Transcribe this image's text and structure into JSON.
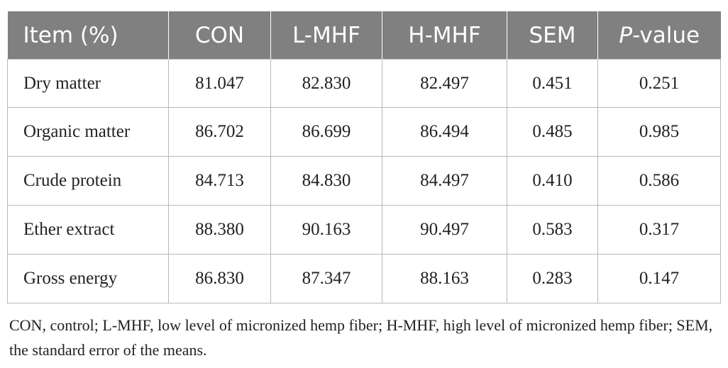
{
  "table": {
    "headers": {
      "item": "Item (%)",
      "con": "CON",
      "lmhf": "L-MHF",
      "hmhf": "H-MHF",
      "sem": "SEM",
      "p_italic": "P",
      "p_rest": "-value"
    },
    "rows": [
      [
        "Dry matter",
        "81.047",
        "82.830",
        "82.497",
        "0.451",
        "0.251"
      ],
      [
        "Organic matter",
        "86.702",
        "86.699",
        "86.494",
        "0.485",
        "0.985"
      ],
      [
        "Crude protein",
        "84.713",
        "84.830",
        "84.497",
        "0.410",
        "0.586"
      ],
      [
        "Ether extract",
        "88.380",
        "90.163",
        "90.497",
        "0.583",
        "0.317"
      ],
      [
        "Gross energy",
        "86.830",
        "87.347",
        "88.163",
        "0.283",
        "0.147"
      ]
    ]
  },
  "footnote": "CON, control; L-MHF, low level of micronized hemp fiber; H-MHF, high level of micronized hemp fiber; SEM, the standard error of the means.",
  "colors": {
    "header_bg": "#808080",
    "header_text": "#ffffff",
    "grid": "#b8b8b8",
    "body_text": "#222222"
  }
}
